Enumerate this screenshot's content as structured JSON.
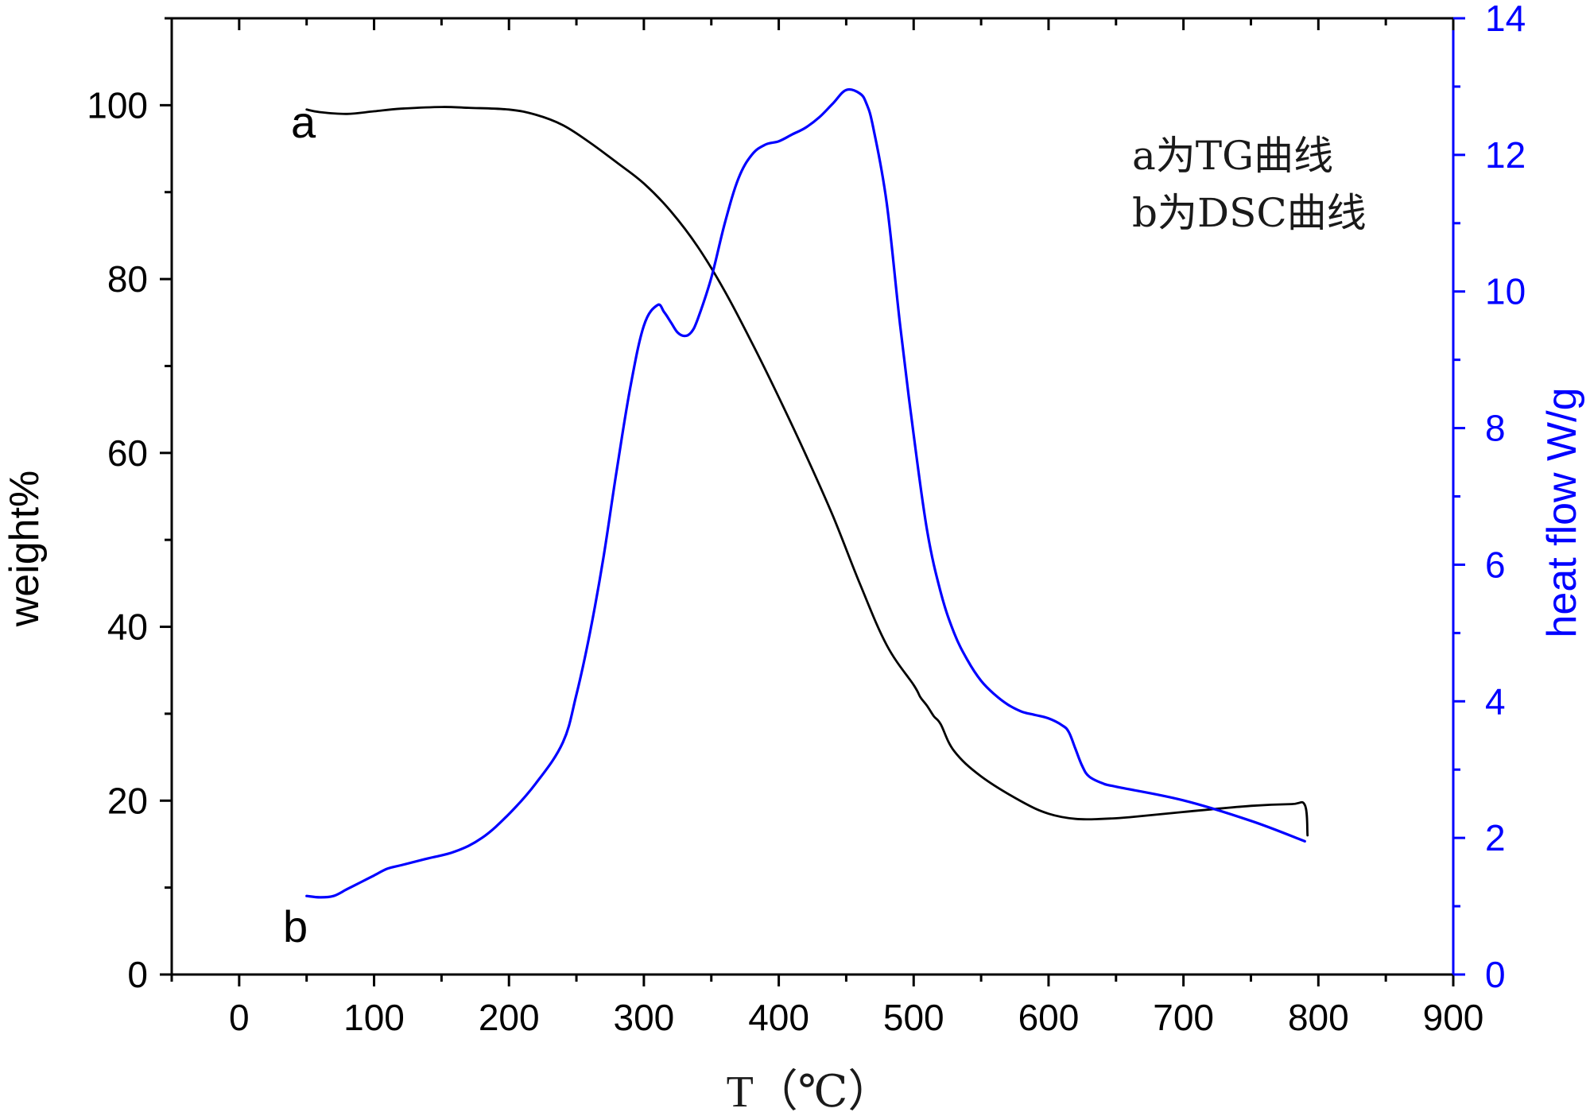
{
  "chart_data": {
    "type": "line",
    "xlabel": "T（℃）",
    "ylabel_left": "weight%",
    "ylabel_right": "heat flow W/g",
    "xlim": [
      -50,
      900
    ],
    "ylim_left": [
      0,
      110
    ],
    "ylim_right": [
      0,
      14
    ],
    "x_ticks": [
      0,
      100,
      200,
      300,
      400,
      500,
      600,
      700,
      800,
      900
    ],
    "y_left_ticks": [
      0,
      20,
      40,
      60,
      80,
      100
    ],
    "y_right_ticks": [
      0,
      2,
      4,
      6,
      8,
      10,
      12,
      14
    ],
    "grid": false,
    "colors": {
      "tg": "#000000",
      "dsc": "#0000ff",
      "axis_left": "#000000",
      "axis_right": "#0000ff"
    },
    "annotations": [
      {
        "text": "a为TG曲线",
        "position": "top-right"
      },
      {
        "text": "b为DSC曲线",
        "position": "top-right"
      }
    ],
    "series": [
      {
        "label": "a",
        "axis": "left",
        "x": [
          50,
          60,
          80,
          100,
          120,
          150,
          170,
          200,
          220,
          240,
          260,
          280,
          300,
          320,
          340,
          360,
          380,
          400,
          420,
          440,
          460,
          480,
          500,
          505,
          510,
          515,
          520,
          530,
          550,
          580,
          600,
          620,
          640,
          660,
          700,
          750,
          780,
          790,
          792
        ],
        "y": [
          99.5,
          99.2,
          99.0,
          99.3,
          99.6,
          99.8,
          99.7,
          99.5,
          98.9,
          97.7,
          95.7,
          93.4,
          91.0,
          87.8,
          83.7,
          78.6,
          72.7,
          66.4,
          59.8,
          52.8,
          45.0,
          37.9,
          33.3,
          31.9,
          30.9,
          29.7,
          28.8,
          25.7,
          22.8,
          19.9,
          18.5,
          17.9,
          17.9,
          18.1,
          18.7,
          19.4,
          19.6,
          19.5,
          16.0
        ]
      },
      {
        "label": "b",
        "axis": "right",
        "x": [
          50,
          60,
          70,
          80,
          90,
          100,
          110,
          120,
          140,
          160,
          180,
          200,
          220,
          240,
          250,
          260,
          270,
          280,
          290,
          300,
          310,
          315,
          320,
          325,
          330,
          335,
          340,
          350,
          360,
          370,
          380,
          390,
          400,
          410,
          420,
          430,
          440,
          450,
          460,
          465,
          470,
          480,
          490,
          500,
          510,
          520,
          530,
          540,
          550,
          560,
          570,
          580,
          590,
          600,
          610,
          615,
          620,
          625,
          630,
          640,
          650,
          700,
          750,
          790
        ],
        "y": [
          1.15,
          1.13,
          1.15,
          1.25,
          1.35,
          1.45,
          1.55,
          1.6,
          1.7,
          1.8,
          2.0,
          2.35,
          2.8,
          3.4,
          4.1,
          5.0,
          6.1,
          7.4,
          8.6,
          9.5,
          9.8,
          9.7,
          9.55,
          9.4,
          9.35,
          9.4,
          9.6,
          10.2,
          11.0,
          11.65,
          12.0,
          12.15,
          12.2,
          12.3,
          12.4,
          12.55,
          12.75,
          12.95,
          12.9,
          12.75,
          12.4,
          11.3,
          9.5,
          7.9,
          6.5,
          5.6,
          5.0,
          4.6,
          4.3,
          4.1,
          3.95,
          3.85,
          3.8,
          3.75,
          3.65,
          3.55,
          3.3,
          3.05,
          2.9,
          2.8,
          2.75,
          2.55,
          2.25,
          1.95
        ]
      }
    ]
  }
}
